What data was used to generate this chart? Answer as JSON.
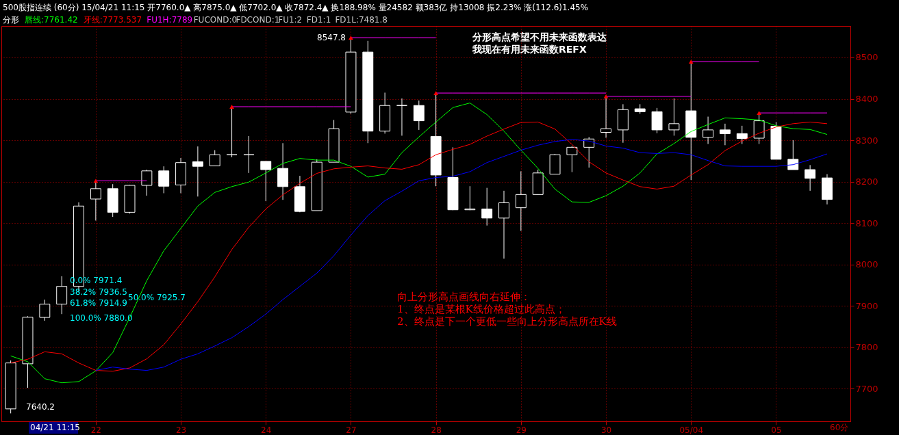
{
  "chart_data": {
    "type": "candlestick",
    "title": "500股指连续 (60分) 15/04/21 11:15 开7760.0▲ 高7875.0▲ 低7702.0▲ 收7872.4▲ 换188.98% 量24582 额383亿 持13008 振2.23% 涨(112.6)1.45%",
    "subtitle": "分形",
    "color": "#ffffff",
    "categories": [
      null,
      null,
      null,
      null,
      null,
      "22",
      null,
      null,
      null,
      null,
      "23",
      null,
      null,
      null,
      null,
      "24",
      null,
      null,
      null,
      null,
      "27",
      null,
      null,
      null,
      null,
      "28",
      null,
      null,
      null,
      null,
      "29",
      null,
      null,
      null,
      null,
      "30",
      null,
      null,
      null,
      null,
      "05/04",
      null,
      null,
      null,
      null,
      "05",
      null,
      null,
      null
    ],
    "ohlc": [
      [
        7651,
        7768,
        7640.2,
        7762
      ],
      [
        7760,
        7875,
        7702,
        7872.4
      ],
      [
        7872,
        7915,
        7864,
        7904
      ],
      [
        7904,
        7971.4,
        7880,
        7947
      ],
      [
        7947,
        8150,
        7935,
        8141
      ],
      [
        8158,
        8202,
        8106,
        8183
      ],
      [
        8183,
        8194,
        8115,
        8126
      ],
      [
        8126,
        8192,
        8123,
        8191
      ],
      [
        8191,
        8229,
        8166,
        8226
      ],
      [
        8226,
        8237,
        8172,
        8189
      ],
      [
        8192,
        8257,
        8172,
        8246
      ],
      [
        8248,
        8285,
        8164,
        8237
      ],
      [
        8238,
        8276,
        8238,
        8265
      ],
      [
        8265,
        8381,
        8259,
        8265
      ],
      [
        8265,
        8310,
        8221,
        8265
      ],
      [
        8249,
        8249,
        8153,
        8229
      ],
      [
        8232,
        8293,
        8156,
        8188
      ],
      [
        8188,
        8214,
        8126,
        8128
      ],
      [
        8130,
        8254,
        8130,
        8247
      ],
      [
        8247,
        8349,
        8247,
        8328
      ],
      [
        8368,
        8547.8,
        8364,
        8513
      ],
      [
        8513,
        8540,
        8293,
        8322
      ],
      [
        8322,
        8415,
        8316,
        8384
      ],
      [
        8384,
        8401,
        8311,
        8384
      ],
      [
        8384,
        8396,
        8325,
        8347
      ],
      [
        8309,
        8414,
        8189,
        8216
      ],
      [
        8210,
        8283,
        8131,
        8132
      ],
      [
        8132,
        8189,
        8131,
        8134
      ],
      [
        8134,
        8185,
        8094,
        8112
      ],
      [
        8112,
        8178,
        8014,
        8149
      ],
      [
        8137,
        8225,
        8081,
        8169
      ],
      [
        8169,
        8229,
        8169,
        8221
      ],
      [
        8218,
        8267,
        8218,
        8265
      ],
      [
        8265,
        8286,
        8223,
        8283
      ],
      [
        8283,
        8308,
        8234,
        8303
      ],
      [
        8319,
        8406,
        8306,
        8328
      ],
      [
        8325,
        8387,
        8294,
        8374
      ],
      [
        8376,
        8387,
        8364,
        8369
      ],
      [
        8369,
        8378,
        8317,
        8325
      ],
      [
        8325,
        8401,
        8311,
        8340
      ],
      [
        8371,
        8490,
        8204,
        8307
      ],
      [
        8307,
        8357,
        8291,
        8325
      ],
      [
        8325,
        8340,
        8288,
        8316
      ],
      [
        8316,
        8335,
        8291,
        8304
      ],
      [
        8305,
        8366,
        8291,
        8347
      ],
      [
        8334,
        8344,
        8254,
        8254
      ],
      [
        8254,
        8300,
        8229,
        8229
      ],
      [
        8229,
        8240,
        8178,
        8208
      ],
      [
        8209,
        8218,
        8145,
        8157
      ]
    ],
    "series": [
      {
        "type": "line",
        "name": "唇线:7761.42",
        "color": "#00ff00",
        "values": [
          7779,
          7765,
          7724,
          7714,
          7717,
          7743,
          7787,
          7872,
          7961,
          8033,
          8087,
          8141,
          8174,
          8188,
          8199,
          8221,
          8244,
          8256,
          8252,
          8252,
          8237,
          8211,
          8218,
          8270,
          8308,
          8344,
          8379,
          8390,
          8362,
          8322,
          8276,
          8232,
          8182,
          8151,
          8150,
          8166,
          8189,
          8221,
          8267,
          8292,
          8321,
          8338,
          8354,
          8352,
          8349,
          8335,
          8328,
          8326,
          8314
        ]
      },
      {
        "type": "line",
        "name": "牙线:7773.537",
        "color": "#ff0000",
        "values": [
          7762,
          7771,
          7789,
          7784,
          7762,
          7744,
          7742,
          7750,
          7772,
          7806,
          7856,
          7910,
          7970,
          8036,
          8090,
          8134,
          8168,
          8196,
          8220,
          8231,
          8235,
          8238,
          8233,
          8230,
          8241,
          8265,
          8278,
          8290,
          8310,
          8327,
          8343,
          8344,
          8327,
          8290,
          8248,
          8221,
          8204,
          8188,
          8182,
          8189,
          8216,
          8241,
          8275,
          8298,
          8317,
          8332,
          8340,
          8344,
          8340
        ]
      },
      {
        "type": "line",
        "color": "#0000ff",
        "values": [
          null,
          null,
          null,
          null,
          null,
          7744,
          7752,
          7747,
          7744,
          7752,
          7771,
          7784,
          7803,
          7823,
          7850,
          7880,
          7915,
          7947,
          7979,
          8021,
          8071,
          8118,
          8154,
          8177,
          8202,
          8210,
          8213,
          8224,
          8246,
          8261,
          8276,
          8288,
          8297,
          8302,
          8298,
          8286,
          8281,
          8270,
          8268,
          8270,
          8265,
          8251,
          8238,
          8237,
          8237,
          8237,
          8241,
          8253,
          8267
        ]
      },
      {
        "type": "line",
        "name": "FU1H:7789",
        "color": "#ff00ff",
        "values": [
          null,
          null,
          null,
          null,
          null,
          8202,
          8202,
          8202,
          8202,
          null,
          null,
          null,
          null,
          null,
          null,
          null,
          null,
          null,
          null,
          null,
          null,
          null,
          null,
          null,
          null,
          null,
          null,
          null,
          null,
          null,
          null,
          null,
          null,
          null,
          null,
          null,
          null,
          null,
          null,
          null,
          null,
          null,
          null,
          null,
          null,
          null,
          null,
          null,
          null
        ]
      },
      {
        "type": "line",
        "color": "#ff00ff",
        "values": [
          null,
          null,
          null,
          null,
          null,
          null,
          null,
          null,
          null,
          null,
          null,
          null,
          null,
          8381,
          8381,
          8381,
          8381,
          8381,
          8381,
          8381,
          8381,
          null,
          null,
          null,
          null,
          null,
          null,
          null,
          null,
          null,
          null,
          null,
          null,
          null,
          null,
          null,
          null,
          null,
          null,
          null,
          null,
          null,
          null,
          null,
          null,
          null,
          null,
          null,
          null
        ]
      },
      {
        "type": "line",
        "color": "#ff00ff",
        "values": [
          null,
          null,
          null,
          null,
          null,
          null,
          null,
          null,
          null,
          null,
          null,
          null,
          null,
          null,
          null,
          null,
          null,
          null,
          null,
          null,
          8547.8,
          8547.8,
          8547.8,
          8547.8,
          8547.8,
          8547.8,
          null,
          null,
          null,
          null,
          null,
          null,
          null,
          null,
          null,
          null,
          null,
          null,
          null,
          null,
          null,
          null,
          null,
          null,
          null,
          null,
          null,
          null,
          null
        ]
      },
      {
        "type": "line",
        "color": "#ff00ff",
        "values": [
          null,
          null,
          null,
          null,
          null,
          null,
          null,
          null,
          null,
          null,
          null,
          null,
          null,
          null,
          null,
          null,
          null,
          null,
          null,
          null,
          null,
          null,
          null,
          null,
          null,
          8414,
          8414,
          8414,
          8414,
          8414,
          8414,
          8414,
          8414,
          8414,
          8414,
          8414,
          null,
          null,
          null,
          null,
          null,
          null,
          null,
          null,
          null,
          null,
          null,
          null,
          null
        ]
      },
      {
        "type": "line",
        "color": "#ff00ff",
        "values": [
          null,
          null,
          null,
          null,
          null,
          null,
          null,
          null,
          null,
          null,
          null,
          null,
          null,
          null,
          null,
          null,
          null,
          null,
          null,
          null,
          null,
          null,
          null,
          null,
          null,
          null,
          null,
          null,
          null,
          null,
          null,
          null,
          null,
          null,
          null,
          8406,
          8406,
          8406,
          8406,
          8406,
          8406,
          null,
          null,
          null,
          null,
          null,
          null,
          null,
          null
        ]
      },
      {
        "type": "line",
        "color": "#ff00ff",
        "values": [
          null,
          null,
          null,
          null,
          null,
          null,
          null,
          null,
          null,
          null,
          null,
          null,
          null,
          null,
          null,
          null,
          null,
          null,
          null,
          null,
          null,
          null,
          null,
          null,
          null,
          null,
          null,
          null,
          null,
          null,
          null,
          null,
          null,
          null,
          null,
          null,
          null,
          null,
          null,
          null,
          8490,
          8490,
          8490,
          8490,
          8490,
          null,
          null,
          null,
          null
        ]
      },
      {
        "type": "line",
        "color": "#ff00ff",
        "values": [
          null,
          null,
          null,
          null,
          null,
          null,
          null,
          null,
          null,
          null,
          null,
          null,
          null,
          null,
          null,
          null,
          null,
          null,
          null,
          null,
          null,
          null,
          null,
          null,
          null,
          null,
          null,
          null,
          null,
          null,
          null,
          null,
          null,
          null,
          null,
          null,
          null,
          null,
          null,
          null,
          null,
          null,
          null,
          null,
          8366,
          8366,
          8366,
          8366,
          8366
        ]
      },
      {
        "type": "scatter",
        "color": "#ff0000",
        "marker": "triangle",
        "values": [
          null,
          null,
          null,
          null,
          null,
          8202,
          null,
          null,
          null,
          null,
          null,
          null,
          null,
          8381,
          null,
          null,
          null,
          null,
          null,
          null,
          8547.8,
          null,
          null,
          null,
          null,
          8414,
          null,
          null,
          null,
          null,
          null,
          null,
          null,
          null,
          null,
          8406,
          null,
          null,
          null,
          null,
          8490,
          null,
          null,
          null,
          8366,
          null,
          null,
          null,
          null
        ]
      }
    ],
    "ylim": [
      7621,
      8576
    ],
    "yticks": [
      7700,
      7800,
      7900,
      8000,
      8100,
      8200,
      8300,
      8400,
      8500
    ],
    "grid": true,
    "legend": "top left",
    "annotations": [
      "FUCOND:0",
      "FDCOND:1",
      "FU1:2",
      "FD1:1",
      "FD1L:7481.8",
      "分形高点希望不用未来函数表达",
      "我现在有用未来函数REFX",
      "向上分形高点画线向右延伸：",
      "1、终点是某根K线价格超过此高点；",
      "2、终点是下一个更低一些向上分形高点所在K线",
      "04/21 11:15",
      "60分",
      "0.0% 7971.4",
      "38.2% 7936.5",
      "50.0% 7925.7",
      "61.8% 7914.9",
      "100.0% 7880.0",
      "7640.2",
      {
        "text": "8547.8",
        "x": "27",
        "y": 8547.8
      }
    ]
  }
}
